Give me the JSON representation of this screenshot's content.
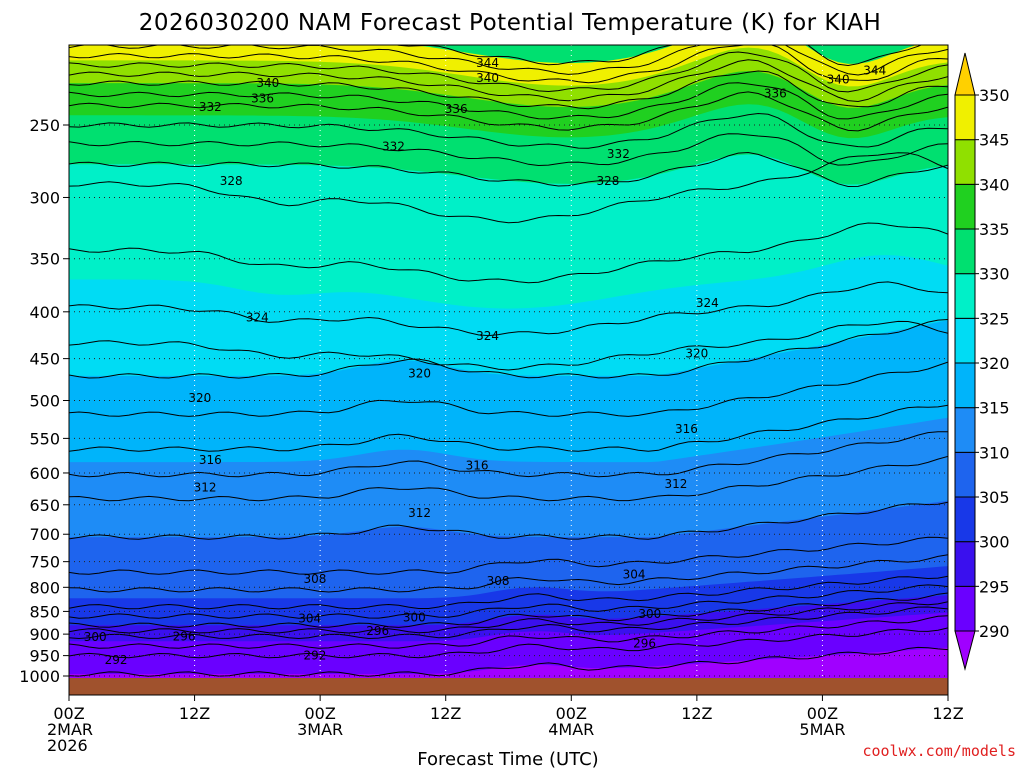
{
  "chart_data": {
    "type": "heatmap",
    "title": "2026030200 NAM Forecast Potential Temperature (K) for KIAH",
    "xlabel": "Forecast Time (UTC)",
    "ylabel": "",
    "x_ticks": [
      {
        "hour": 0,
        "lines": [
          "00Z",
          "2MAR",
          "2026"
        ]
      },
      {
        "hour": 12,
        "lines": [
          "12Z"
        ]
      },
      {
        "hour": 24,
        "lines": [
          "00Z",
          "3MAR"
        ]
      },
      {
        "hour": 36,
        "lines": [
          "12Z"
        ]
      },
      {
        "hour": 48,
        "lines": [
          "00Z",
          "4MAR"
        ]
      },
      {
        "hour": 60,
        "lines": [
          "12Z"
        ]
      },
      {
        "hour": 72,
        "lines": [
          "00Z",
          "5MAR"
        ]
      },
      {
        "hour": 84,
        "lines": [
          "12Z"
        ]
      }
    ],
    "xlim": [
      0,
      84
    ],
    "y_ticks": [
      250,
      300,
      350,
      400,
      450,
      500,
      550,
      600,
      650,
      700,
      750,
      800,
      850,
      900,
      950,
      1000
    ],
    "ylim": [
      200,
      1030
    ],
    "y_scale": "log-pressure",
    "grid": true,
    "colorbar": {
      "levels": [
        290,
        295,
        300,
        305,
        310,
        315,
        320,
        325,
        330,
        335,
        340,
        345,
        350
      ],
      "labels": [
        "290",
        "295",
        "300",
        "305",
        "310",
        "315",
        "320",
        "325",
        "330",
        "335",
        "340",
        "345",
        "350"
      ],
      "colors": [
        "#a000ff",
        "#6a00ff",
        "#3a10ee",
        "#1838e8",
        "#1e64ee",
        "#1e8cf6",
        "#00b4fa",
        "#00dcf4",
        "#00f0c8",
        "#00e070",
        "#20d020",
        "#90e000",
        "#f0f000",
        "#ffd000"
      ]
    },
    "contour_labels": [
      {
        "text": "344",
        "hour": 40,
        "p": 214
      },
      {
        "text": "344",
        "hour": 77,
        "p": 218
      },
      {
        "text": "340",
        "hour": 19,
        "p": 225
      },
      {
        "text": "340",
        "hour": 40,
        "p": 222
      },
      {
        "text": "340",
        "hour": 73.5,
        "p": 223
      },
      {
        "text": "336",
        "hour": 18.5,
        "p": 234
      },
      {
        "text": "336",
        "hour": 37,
        "p": 240
      },
      {
        "text": "336",
        "hour": 67.5,
        "p": 231
      },
      {
        "text": "332",
        "hour": 13.5,
        "p": 239
      },
      {
        "text": "332",
        "hour": 31,
        "p": 264
      },
      {
        "text": "332",
        "hour": 52.5,
        "p": 269
      },
      {
        "text": "328",
        "hour": 15.5,
        "p": 288
      },
      {
        "text": "328",
        "hour": 51.5,
        "p": 288
      },
      {
        "text": "324",
        "hour": 18,
        "p": 406
      },
      {
        "text": "324",
        "hour": 40,
        "p": 425
      },
      {
        "text": "324",
        "hour": 61,
        "p": 391
      },
      {
        "text": "320",
        "hour": 12.5,
        "p": 497
      },
      {
        "text": "320",
        "hour": 33.5,
        "p": 467
      },
      {
        "text": "320",
        "hour": 60,
        "p": 444
      },
      {
        "text": "316",
        "hour": 13.5,
        "p": 581
      },
      {
        "text": "316",
        "hour": 39,
        "p": 589
      },
      {
        "text": "316",
        "hour": 59,
        "p": 537
      },
      {
        "text": "312",
        "hour": 13,
        "p": 622
      },
      {
        "text": "312",
        "hour": 33.5,
        "p": 664
      },
      {
        "text": "312",
        "hour": 58,
        "p": 617
      },
      {
        "text": "308",
        "hour": 23.5,
        "p": 783
      },
      {
        "text": "308",
        "hour": 41,
        "p": 787
      },
      {
        "text": "304",
        "hour": 23,
        "p": 865
      },
      {
        "text": "304",
        "hour": 54,
        "p": 775
      },
      {
        "text": "300",
        "hour": 2.5,
        "p": 907
      },
      {
        "text": "300",
        "hour": 33,
        "p": 863
      },
      {
        "text": "300",
        "hour": 55.5,
        "p": 856
      },
      {
        "text": "296",
        "hour": 11,
        "p": 905
      },
      {
        "text": "296",
        "hour": 29.5,
        "p": 893
      },
      {
        "text": "296",
        "hour": 55,
        "p": 921
      },
      {
        "text": "292",
        "hour": 4.5,
        "p": 961
      },
      {
        "text": "292",
        "hour": 23.5,
        "p": 950
      }
    ]
  },
  "footer": {
    "credit": "coolwx.com/models"
  }
}
